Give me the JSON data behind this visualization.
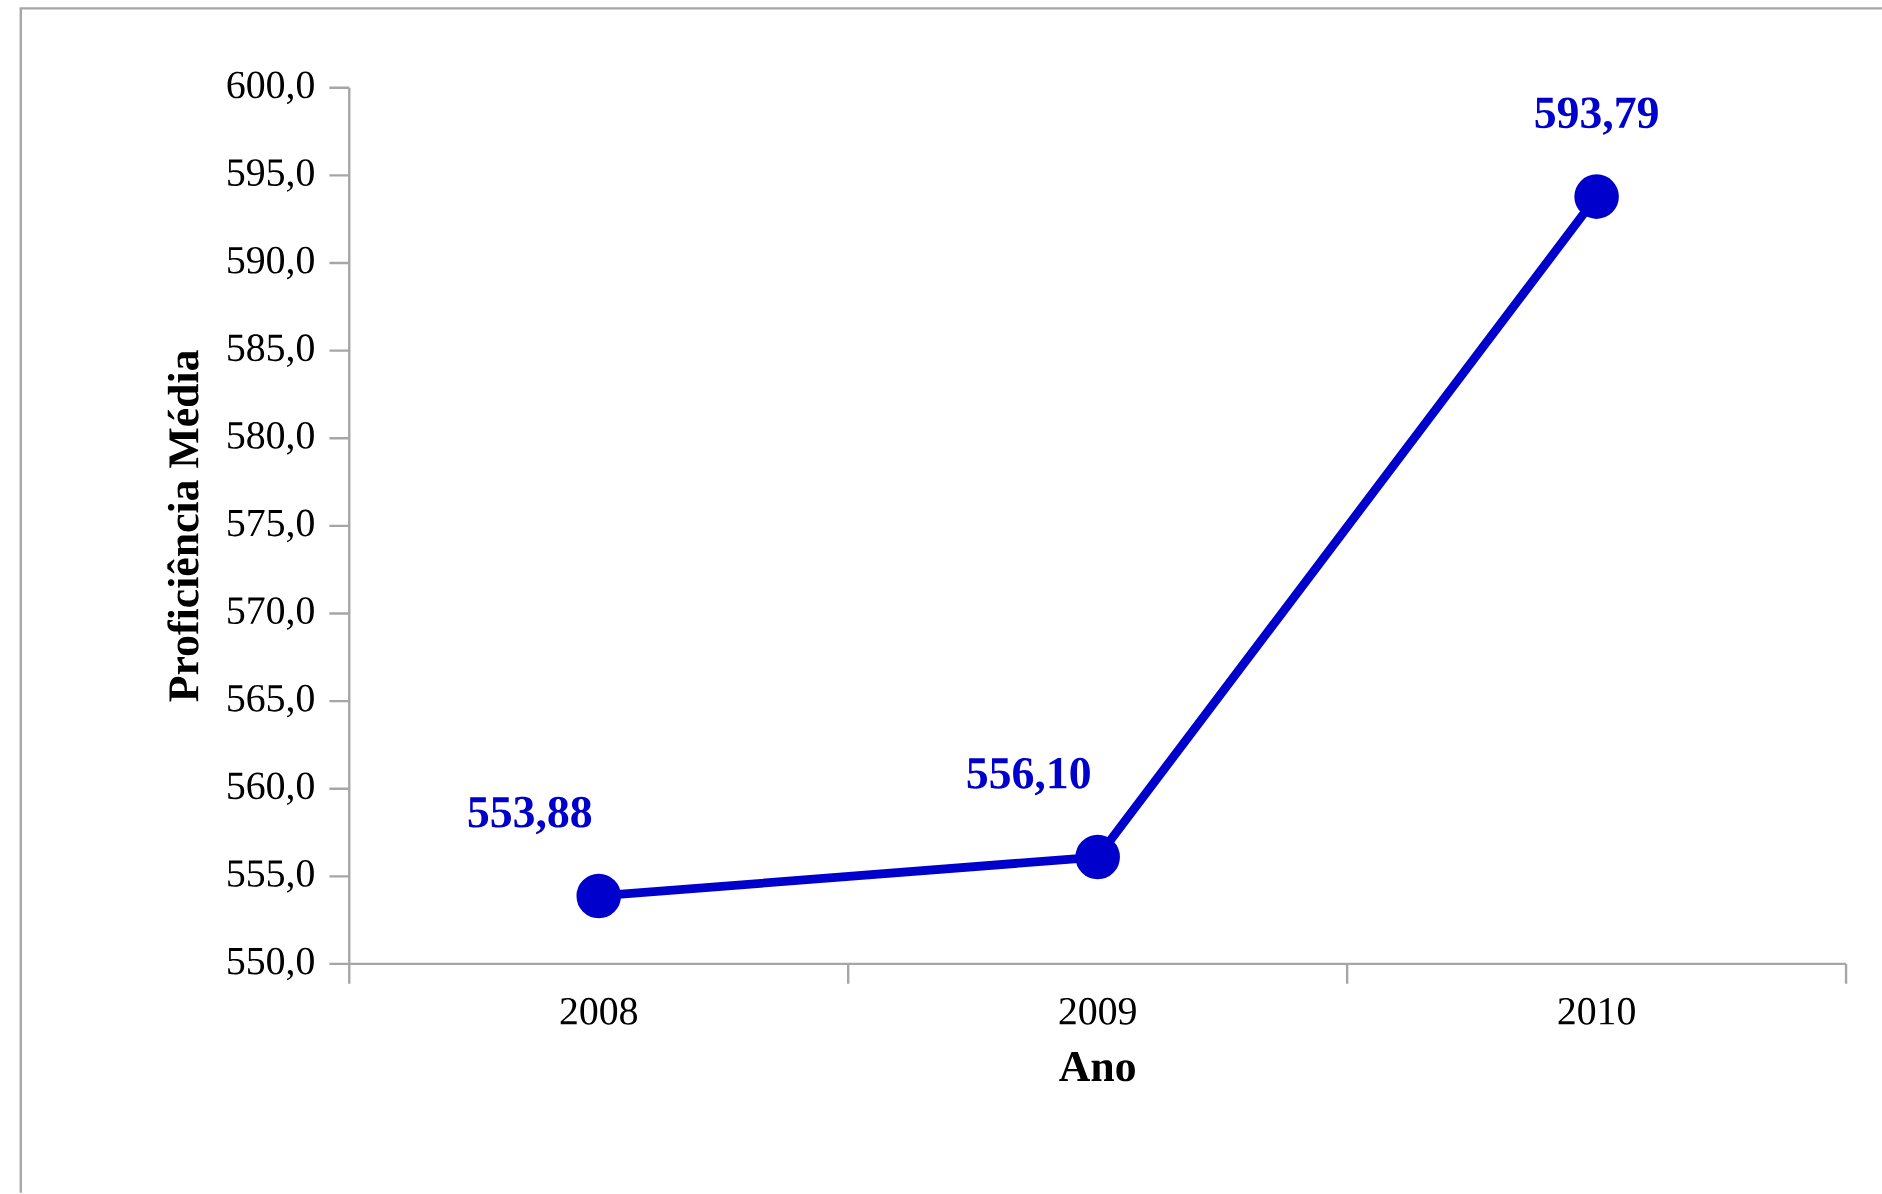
{
  "chart_data": {
    "type": "line",
    "xlabel": "Ano",
    "ylabel": "Proficiência Média",
    "categories": [
      "2008",
      "2009",
      "2010"
    ],
    "series": [
      {
        "color": "#0000cc",
        "values": [
          553.88,
          556.1,
          593.79
        ],
        "value_labels": [
          "553,88",
          "556,10",
          "593,79"
        ]
      }
    ],
    "ylim": [
      550,
      600
    ],
    "yticks": [
      {
        "value": 550,
        "label": "550,0"
      },
      {
        "value": 555,
        "label": "555,0"
      },
      {
        "value": 560,
        "label": "560,0"
      },
      {
        "value": 565,
        "label": "565,0"
      },
      {
        "value": 570,
        "label": "570,0"
      },
      {
        "value": 575,
        "label": "575,0"
      },
      {
        "value": 580,
        "label": "580,0"
      },
      {
        "value": 585,
        "label": "585,0"
      },
      {
        "value": 590,
        "label": "590,0"
      },
      {
        "value": 595,
        "label": "595,0"
      },
      {
        "value": 600,
        "label": "600,0"
      }
    ],
    "marker": "circle",
    "line_style": "solid",
    "grid": false
  }
}
